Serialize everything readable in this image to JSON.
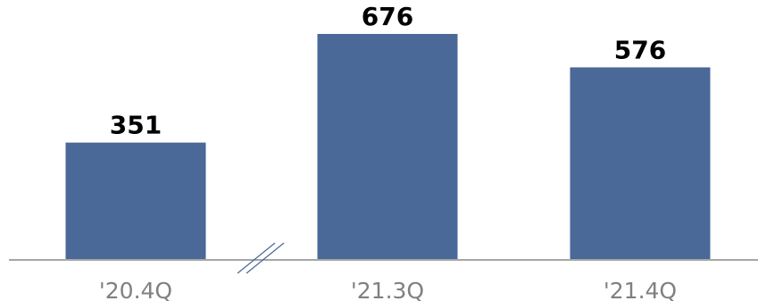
{
  "chart_data": {
    "type": "bar",
    "categories": [
      "'20.4Q",
      "'21.3Q",
      "'21.4Q"
    ],
    "values": [
      351,
      676,
      576
    ],
    "title": "",
    "xlabel": "",
    "ylabel": "",
    "ylim": [
      0,
      676
    ],
    "axis_break_between": [
      "'20.4Q",
      "'21.3Q"
    ],
    "grid": false,
    "legend": "none",
    "colors": {
      "bar": "#4a6898",
      "value_label": "#000000",
      "tick_label": "#808080",
      "baseline": "#a6a6a6"
    }
  }
}
